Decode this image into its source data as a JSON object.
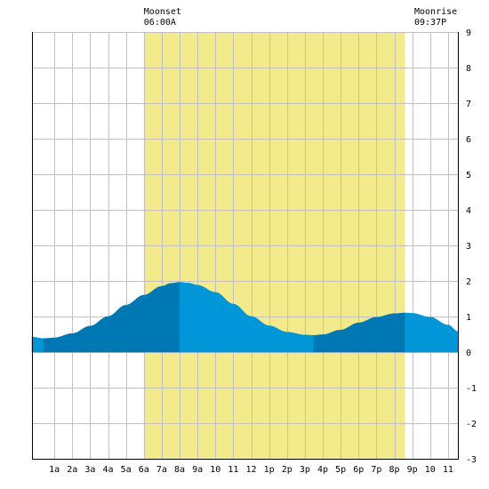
{
  "chart_data": {
    "type": "area",
    "title": "",
    "xlabel": "",
    "ylabel": "",
    "x_unit": "hour of day",
    "xlim": [
      -1.25,
      22.55
    ],
    "ylim": [
      -3,
      9
    ],
    "x_ticks": [
      {
        "x": 0,
        "label": "1a"
      },
      {
        "x": 1,
        "label": "2a"
      },
      {
        "x": 2,
        "label": "3a"
      },
      {
        "x": 3,
        "label": "4a"
      },
      {
        "x": 4,
        "label": "5a"
      },
      {
        "x": 5,
        "label": "6a"
      },
      {
        "x": 6,
        "label": "7a"
      },
      {
        "x": 7,
        "label": "8a"
      },
      {
        "x": 8,
        "label": "9a"
      },
      {
        "x": 9,
        "label": "10"
      },
      {
        "x": 10,
        "label": "11"
      },
      {
        "x": 11,
        "label": "12"
      },
      {
        "x": 12,
        "label": "1p"
      },
      {
        "x": 13,
        "label": "2p"
      },
      {
        "x": 14,
        "label": "3p"
      },
      {
        "x": 15,
        "label": "4p"
      },
      {
        "x": 16,
        "label": "5p"
      },
      {
        "x": 17,
        "label": "6p"
      },
      {
        "x": 18,
        "label": "7p"
      },
      {
        "x": 19,
        "label": "8p"
      },
      {
        "x": 20,
        "label": "9p"
      },
      {
        "x": 21,
        "label": "10"
      },
      {
        "x": 22,
        "label": "11"
      }
    ],
    "y_ticks": [
      -3,
      -2,
      -1,
      0,
      1,
      2,
      3,
      4,
      5,
      6,
      7,
      8,
      9
    ],
    "grid": true,
    "daylight_band": {
      "start": 5.0,
      "end": 19.6,
      "color": "#f3ea8c"
    },
    "series": [
      {
        "values_x": [
          -1.25,
          -0.6,
          0,
          1,
          2,
          3,
          4,
          5,
          6,
          6.5,
          7,
          7.5,
          8,
          9,
          10,
          11,
          12,
          13,
          14,
          14.5,
          15,
          16,
          17,
          18,
          19,
          19.6,
          20,
          21,
          22,
          22.55
        ],
        "values_y": [
          0.42,
          0.38,
          0.4,
          0.52,
          0.73,
          1.0,
          1.32,
          1.6,
          1.85,
          1.93,
          1.96,
          1.94,
          1.88,
          1.68,
          1.35,
          1.0,
          0.74,
          0.56,
          0.48,
          0.47,
          0.49,
          0.62,
          0.82,
          0.98,
          1.08,
          1.1,
          1.09,
          0.98,
          0.76,
          0.58
        ]
      }
    ],
    "fill_segments": [
      {
        "from": -1.25,
        "to": -0.6,
        "color": "#0096d8"
      },
      {
        "from": -0.6,
        "to": 7.0,
        "color": "#0078b4"
      },
      {
        "from": 7.0,
        "to": 14.5,
        "color": "#0096d8"
      },
      {
        "from": 14.5,
        "to": 19.6,
        "color": "#0078b4"
      },
      {
        "from": 19.6,
        "to": 22.55,
        "color": "#0096d8"
      }
    ],
    "annotations": [
      {
        "label": "Moonset",
        "time": "06:00A",
        "x": 5.0
      },
      {
        "label": "Moonrise",
        "time": "09:37P",
        "x": 20.6
      }
    ],
    "colors": {
      "grid": "#c0c0c0",
      "axis": "#000000",
      "background": "#ffffff"
    }
  }
}
